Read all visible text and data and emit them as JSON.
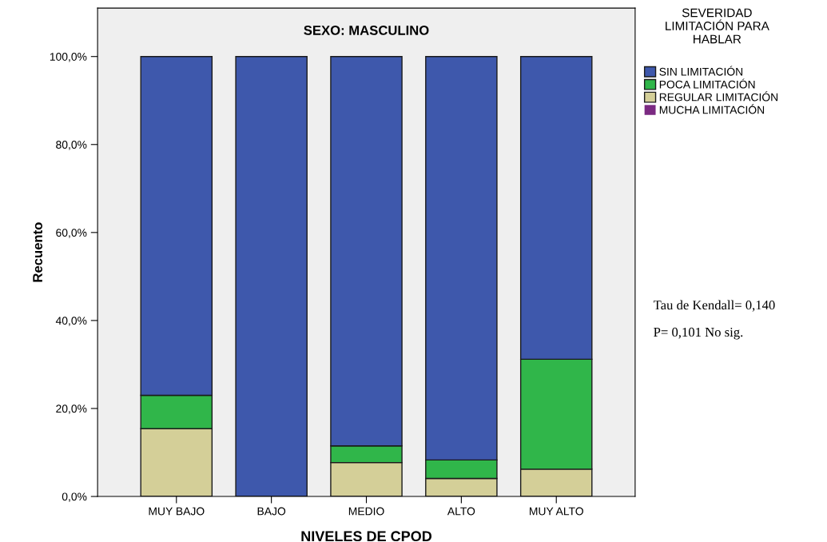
{
  "chart_data": {
    "type": "bar",
    "stacked": true,
    "title": "SEXO: MASCULINO",
    "xlabel": "NIVELES DE CPOD",
    "ylabel": "Recuento",
    "legend_title": "SEVERIDAD\nLIMITACIÓN PARA\nHABLAR",
    "legend": "right",
    "categories": [
      "MUY BAJO",
      "BAJO",
      "MEDIO",
      "ALTO",
      "MUY ALTO"
    ],
    "series": [
      {
        "name": "MUCHA LIMITACIÓN",
        "color": "#7b2a82",
        "values": [
          0,
          0,
          0,
          0,
          0
        ]
      },
      {
        "name": "REGULAR LIMITACIÓN",
        "color": "#d4cf98",
        "values": [
          15.4,
          0,
          7.7,
          4.1,
          6.2
        ]
      },
      {
        "name": "POCA LIMITACIÓN",
        "color": "#30b64a",
        "values": [
          7.6,
          0,
          3.8,
          4.2,
          25.0
        ]
      },
      {
        "name": "SIN LIMITACIÓN",
        "color": "#3e58ac",
        "values": [
          77.0,
          100,
          88.5,
          91.7,
          68.8
        ]
      }
    ],
    "ylim": [
      0,
      111
    ],
    "yticks": [
      {
        "value": 0,
        "label": "0,0%"
      },
      {
        "value": 20,
        "label": "20,0%"
      },
      {
        "value": 40,
        "label": "40,0%"
      },
      {
        "value": 60,
        "label": "60,0%"
      },
      {
        "value": 80,
        "label": "80,0%"
      },
      {
        "value": 100,
        "label": "100,0%"
      }
    ],
    "grid": false,
    "annotations": [
      "Tau de Kendall= 0,140",
      "P= 0,101 No sig."
    ]
  }
}
